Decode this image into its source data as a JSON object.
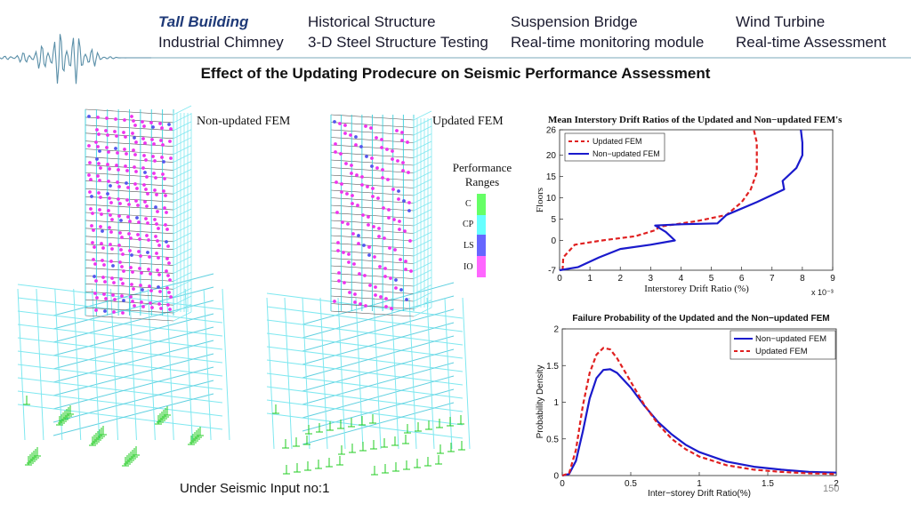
{
  "nav": {
    "row1": [
      "Tall Building",
      "Historical Structure",
      "Suspension Bridge",
      "Wind Turbine"
    ],
    "row2": [
      "Industrial Chimney",
      "3-D Steel Structure Testing",
      "Real-time monitoring module",
      "Real-time Assessment"
    ],
    "active": "Tall Building"
  },
  "slide_title": "Effect of the Updating Prodecure on Seismic Performance Assessment",
  "models": {
    "left_label": "Non-updated FEM",
    "right_label": "Updated FEM"
  },
  "legend": {
    "title_line1": "Performance",
    "title_line2": "Ranges",
    "items": [
      {
        "label": "C",
        "color": "#66ff66"
      },
      {
        "label": "CP",
        "color": "#66ffff"
      },
      {
        "label": "LS",
        "color": "#6666ff"
      },
      {
        "label": "IO",
        "color": "#ff66ff"
      }
    ]
  },
  "caption": "Under Seismic Input no:1",
  "page_number": "150",
  "chart_data": [
    {
      "type": "line",
      "title": "Mean Interstory Drift Ratios of the Updated and Non−updated FEM's",
      "xlabel": "Interstorey Drift Ratio (%)",
      "ylabel": "Floors",
      "x_multiplier": "x 10⁻³",
      "xlim": [
        0,
        9
      ],
      "ylim": [
        -7,
        26
      ],
      "xticks": [
        "0",
        "1",
        "2",
        "3",
        "4",
        "5",
        "6",
        "7",
        "8",
        "9"
      ],
      "yticks": [
        "-7",
        "0",
        "5",
        "10",
        "15",
        "20",
        "26"
      ],
      "legend_position": "top-left",
      "series": [
        {
          "name": "Updated FEM",
          "color": "#e02020",
          "dash": true,
          "points": [
            [
              0.1,
              -7
            ],
            [
              0.12,
              -4
            ],
            [
              0.5,
              -1
            ],
            [
              1.4,
              0
            ],
            [
              2.5,
              1
            ],
            [
              3.2,
              2.5
            ],
            [
              3.25,
              3.2
            ],
            [
              4.5,
              4.5
            ],
            [
              5.5,
              6
            ],
            [
              6.0,
              9
            ],
            [
              6.3,
              12
            ],
            [
              6.4,
              14
            ],
            [
              6.5,
              16
            ],
            [
              6.5,
              20
            ],
            [
              6.5,
              23
            ],
            [
              6.4,
              26
            ]
          ]
        },
        {
          "name": "Non−updated FEM",
          "color": "#1a1acc",
          "dash": false,
          "points": [
            [
              0,
              -7
            ],
            [
              0.6,
              -6.3
            ],
            [
              1.3,
              -4
            ],
            [
              2,
              -2
            ],
            [
              3,
              -1
            ],
            [
              3.8,
              0
            ],
            [
              3.5,
              2
            ],
            [
              3.15,
              3.5
            ],
            [
              4,
              3.8
            ],
            [
              5.2,
              4
            ],
            [
              5.5,
              6
            ],
            [
              6.5,
              9
            ],
            [
              7.4,
              12
            ],
            [
              7.35,
              14
            ],
            [
              7.8,
              17
            ],
            [
              8.0,
              20
            ],
            [
              8.0,
              23
            ],
            [
              7.95,
              26
            ]
          ]
        }
      ]
    },
    {
      "type": "line",
      "title": "Failure Probability of the Updated and the Non−updated FEM",
      "xlabel": "Inter−storey Drift Ratio(%)",
      "ylabel": "Probability Density",
      "xlim": [
        0,
        2
      ],
      "ylim": [
        0,
        2
      ],
      "xticks": [
        "0",
        "0.5",
        "1",
        "1.5",
        "2"
      ],
      "yticks": [
        "0",
        "0.5",
        "1",
        "1.5",
        "2"
      ],
      "legend_position": "top-right",
      "series": [
        {
          "name": "Non−updated FEM",
          "color": "#1a1acc",
          "dash": false,
          "points": [
            [
              0,
              0
            ],
            [
              0.05,
              0.02
            ],
            [
              0.1,
              0.2
            ],
            [
              0.15,
              0.6
            ],
            [
              0.2,
              1.05
            ],
            [
              0.25,
              1.33
            ],
            [
              0.3,
              1.44
            ],
            [
              0.35,
              1.45
            ],
            [
              0.4,
              1.4
            ],
            [
              0.5,
              1.2
            ],
            [
              0.6,
              0.95
            ],
            [
              0.7,
              0.73
            ],
            [
              0.8,
              0.56
            ],
            [
              0.9,
              0.42
            ],
            [
              1.0,
              0.32
            ],
            [
              1.2,
              0.19
            ],
            [
              1.4,
              0.12
            ],
            [
              1.6,
              0.08
            ],
            [
              1.8,
              0.05
            ],
            [
              2.0,
              0.04
            ]
          ]
        },
        {
          "name": "Updated FEM",
          "color": "#e02020",
          "dash": true,
          "points": [
            [
              0,
              0
            ],
            [
              0.05,
              0.03
            ],
            [
              0.1,
              0.35
            ],
            [
              0.15,
              0.95
            ],
            [
              0.2,
              1.4
            ],
            [
              0.25,
              1.65
            ],
            [
              0.3,
              1.74
            ],
            [
              0.35,
              1.72
            ],
            [
              0.4,
              1.6
            ],
            [
              0.5,
              1.28
            ],
            [
              0.6,
              0.96
            ],
            [
              0.7,
              0.7
            ],
            [
              0.8,
              0.5
            ],
            [
              0.9,
              0.36
            ],
            [
              1.0,
              0.26
            ],
            [
              1.2,
              0.14
            ],
            [
              1.4,
              0.08
            ],
            [
              1.6,
              0.05
            ],
            [
              1.8,
              0.03
            ],
            [
              2.0,
              0.02
            ]
          ]
        }
      ]
    }
  ]
}
